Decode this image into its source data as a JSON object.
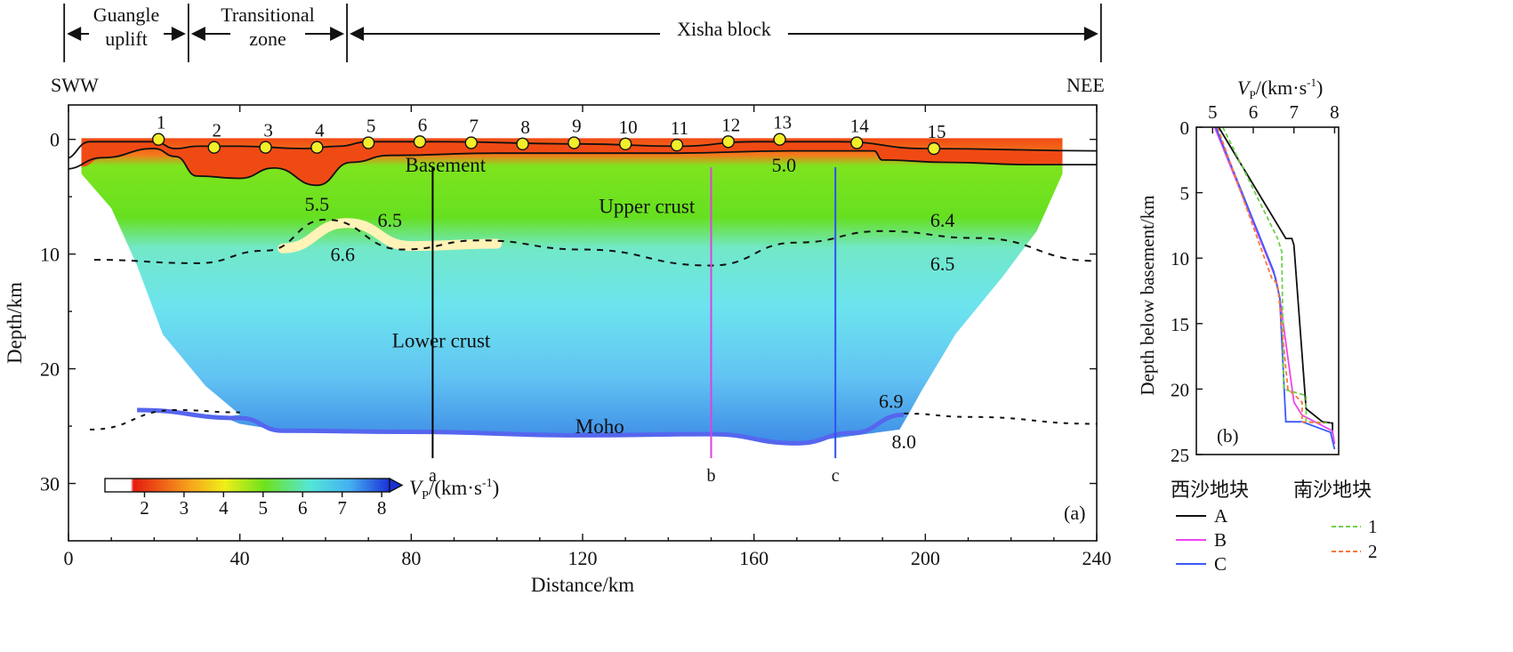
{
  "chart_data": [
    {
      "id": "a",
      "type": "heatmap",
      "panel_label": "(a)",
      "xlabel": "Distance/km",
      "ylabel": "Depth/km",
      "xlim": [
        0,
        240
      ],
      "ylim": [
        -3,
        35
      ],
      "x_ticks": [
        "0",
        "40",
        "80",
        "120",
        "160",
        "200",
        "240"
      ],
      "x_tick_values": [
        0,
        40,
        80,
        120,
        160,
        200,
        240
      ],
      "y_ticks": [
        "0",
        "10",
        "20",
        "30"
      ],
      "y_tick_values": [
        0,
        10,
        20,
        30
      ],
      "direction_left": "SWW",
      "direction_right": "NEE",
      "zones": [
        {
          "name": "Guangle\nuplift",
          "x_start": -1,
          "x_end": 28
        },
        {
          "name": "Transitional\nzone",
          "x_start": 28,
          "x_end": 65
        },
        {
          "name": "Xisha block",
          "x_start": 65,
          "x_end": 241
        }
      ],
      "stations": [
        {
          "label": "1",
          "x": 21,
          "depth": 0.0
        },
        {
          "label": "2",
          "x": 34,
          "depth": 0.7
        },
        {
          "label": "3",
          "x": 46,
          "depth": 0.7
        },
        {
          "label": "4",
          "x": 58,
          "depth": 0.7
        },
        {
          "label": "5",
          "x": 70,
          "depth": 0.3
        },
        {
          "label": "6",
          "x": 82,
          "depth": 0.2
        },
        {
          "label": "7",
          "x": 94,
          "depth": 0.3
        },
        {
          "label": "8",
          "x": 106,
          "depth": 0.4
        },
        {
          "label": "9",
          "x": 118,
          "depth": 0.3
        },
        {
          "label": "10",
          "x": 130,
          "depth": 0.4
        },
        {
          "label": "11",
          "x": 142,
          "depth": 0.5
        },
        {
          "label": "12",
          "x": 154,
          "depth": 0.2
        },
        {
          "label": "13",
          "x": 166,
          "depth": 0.0
        },
        {
          "label": "14",
          "x": 184,
          "depth": 0.3
        },
        {
          "label": "15",
          "x": 202,
          "depth": 0.8
        }
      ],
      "profile_lines": [
        {
          "label": "a",
          "x": 85,
          "color": "#000000"
        },
        {
          "label": "b",
          "x": 150,
          "color": "#e040e0"
        },
        {
          "label": "c",
          "x": 179,
          "color": "#3050ee"
        }
      ],
      "region_labels": [
        {
          "text": "Basement",
          "x": 88,
          "depth": 2.2
        },
        {
          "text": "Upper crust",
          "x": 135,
          "depth": 5.8
        },
        {
          "text": "Lower crust",
          "x": 87,
          "depth": 17.5
        },
        {
          "text": "Moho",
          "x": 124,
          "depth": 25.0
        }
      ],
      "velocity_labels": [
        {
          "text": "5.5",
          "x": 58,
          "depth": 5.6
        },
        {
          "text": "5.0",
          "x": 167,
          "depth": 2.2
        },
        {
          "text": "6.5",
          "x": 75,
          "depth": 7.0
        },
        {
          "text": "6.6",
          "x": 64,
          "depth": 10.0
        },
        {
          "text": "6.4",
          "x": 204,
          "depth": 7.0
        },
        {
          "text": "6.5",
          "x": 204,
          "depth": 10.8
        },
        {
          "text": "6.9",
          "x": 192,
          "depth": 22.8
        },
        {
          "text": "8.0",
          "x": 195,
          "depth": 26.3
        }
      ],
      "colorbar": {
        "label": "Vp/(km·s⁻¹)",
        "label_main": "V",
        "label_sub": "P",
        "label_rest": "/(km·s",
        "label_sup": "-1",
        "label_close": ")",
        "ticks": [
          "2",
          "3",
          "4",
          "5",
          "6",
          "7",
          "8"
        ],
        "tick_values": [
          2,
          3,
          4,
          5,
          6,
          7,
          8
        ],
        "range": [
          1,
          8.2
        ]
      },
      "colors": {
        "basement": "#f04a14",
        "upper": "#6ee21c",
        "mid": "#6fe8d8",
        "lower": "#66c9f2",
        "deep": "#3f8ee6",
        "moho": "#5566ee",
        "highlight": "#fff3b8",
        "station": "#f2ee2a"
      }
    },
    {
      "id": "b",
      "type": "line",
      "panel_label": "(b)",
      "title_main": "V",
      "title_sub": "P",
      "title_rest": "/(km·s",
      "title_sup": "-1",
      "title_close": ")",
      "xlabel": "Vp/(km·s⁻¹)",
      "ylabel": "Depth below basement/km",
      "xlim": [
        4.6,
        8.1
      ],
      "ylim": [
        0,
        25
      ],
      "x_ticks": [
        "5",
        "6",
        "7",
        "8"
      ],
      "x_tick_values": [
        5,
        6,
        7,
        8
      ],
      "y_ticks": [
        "0",
        "5",
        "10",
        "15",
        "20",
        "25"
      ],
      "y_tick_values": [
        0,
        5,
        10,
        15,
        20,
        25
      ],
      "legend_left_title": "西沙地块",
      "legend_right_title": "南沙地块",
      "series": [
        {
          "name": "A",
          "color": "#111111",
          "dash": "",
          "x": [
            5.15,
            6.8,
            6.95,
            7.0,
            7.3,
            7.7,
            7.95,
            7.95
          ],
          "y": [
            0,
            8.5,
            8.5,
            9.0,
            21.5,
            22.5,
            22.6,
            23.4
          ]
        },
        {
          "name": "B",
          "color": "#ee44ee",
          "dash": "",
          "x": [
            5.05,
            6.55,
            6.65,
            7.0,
            7.2,
            7.95,
            8.0
          ],
          "y": [
            0,
            11.5,
            13.0,
            21.0,
            22.0,
            23.2,
            24.2
          ]
        },
        {
          "name": "C",
          "color": "#3b5bff",
          "dash": "",
          "x": [
            5.08,
            6.5,
            6.65,
            6.8,
            7.2,
            7.9,
            8.0
          ],
          "y": [
            0,
            11.0,
            13.0,
            22.5,
            22.5,
            23.3,
            24.6
          ]
        },
        {
          "name": "1",
          "color": "#6ed04c",
          "dash": "5,3",
          "x": [
            5.25,
            6.6,
            6.7,
            6.75,
            7.3,
            7.3,
            7.9
          ],
          "y": [
            0,
            8.5,
            9.5,
            20.0,
            20.5,
            22.5,
            22.6
          ]
        },
        {
          "name": "2",
          "color": "#f47a3a",
          "dash": "5,3",
          "x": [
            5.12,
            6.45,
            6.6,
            6.85,
            7.2,
            7.2,
            7.75
          ],
          "y": [
            0,
            11.5,
            12.0,
            20.0,
            21.0,
            22.5,
            22.6
          ]
        }
      ]
    }
  ]
}
